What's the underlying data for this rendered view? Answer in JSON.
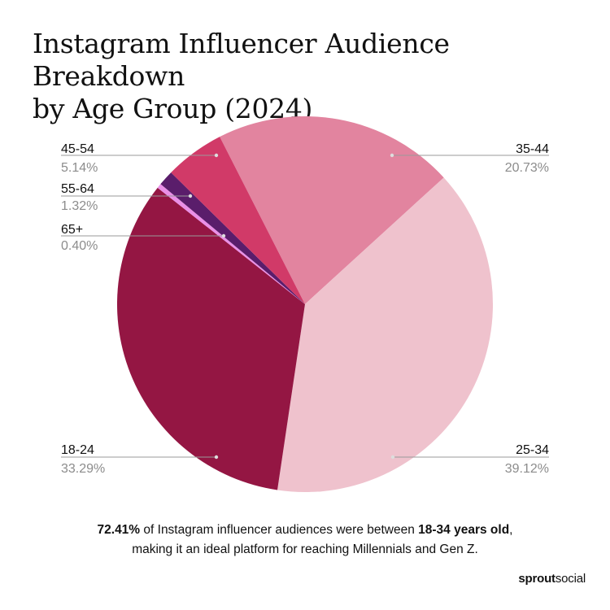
{
  "header": {
    "title_line1": "Instagram Influencer Audience Breakdown",
    "title_line2": "by Age Group (2024)"
  },
  "chart_data": {
    "type": "pie",
    "title": "Instagram Influencer Audience Breakdown by Age Group (2024)",
    "categories": [
      "35-44",
      "25-34",
      "18-24",
      "65+",
      "55-64",
      "45-54"
    ],
    "values": [
      20.73,
      39.12,
      33.29,
      0.4,
      1.32,
      5.14
    ],
    "value_labels": [
      "20.73%",
      "39.12%",
      "33.29%",
      "0.40%",
      "1.32%",
      "5.14%"
    ],
    "colors": [
      "#e2849f",
      "#efc2cd",
      "#941643",
      "#ea8fe7",
      "#5a1d6b",
      "#d13a68"
    ],
    "start_angle_deg": -27,
    "direction": "clockwise"
  },
  "footer": {
    "note_part1": "72.41%",
    "note_part2": " of Instagram influencer audiences were between ",
    "note_part3": "18-34 years old",
    "note_part4": ",",
    "note_line2": "making it an ideal platform for reaching Millennials and Gen Z.",
    "brand_part1": "sprout",
    "brand_part2": "social"
  }
}
